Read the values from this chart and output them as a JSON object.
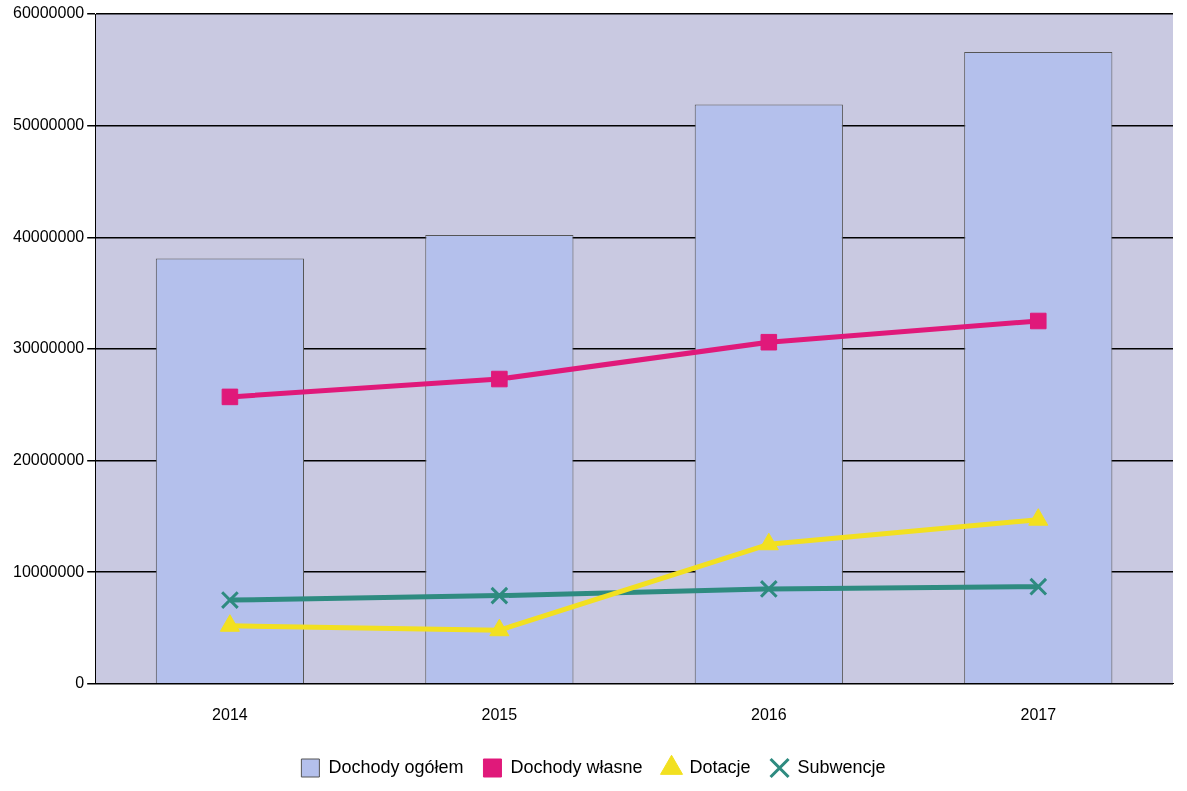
{
  "chart_data": {
    "type": "bar",
    "categories": [
      "2014",
      "2015",
      "2016",
      "2017"
    ],
    "series": [
      {
        "name": "Dochody ogółem",
        "color": "#b4c0ec",
        "values": [
          38100000,
          40200000,
          51900000,
          56600000
        ]
      },
      {
        "name": "Dochody własne",
        "type": "line",
        "color": "#e0197a",
        "marker": "square",
        "values": [
          25700000,
          27300000,
          30600000,
          32500000
        ]
      },
      {
        "name": "Dotacje",
        "type": "line",
        "color": "#f2e020",
        "marker": "triangle",
        "values": [
          5200000,
          4800000,
          12500000,
          14700000
        ]
      },
      {
        "name": "Subwencje",
        "type": "line",
        "color": "#2e8b80",
        "marker": "cross",
        "values": [
          7500000,
          7900000,
          8500000,
          8700000
        ]
      }
    ],
    "ylim": [
      0,
      60000000
    ],
    "yticks": [
      0,
      10000000,
      20000000,
      30000000,
      40000000,
      50000000,
      60000000
    ],
    "grid": "y",
    "legend": "bottom"
  }
}
